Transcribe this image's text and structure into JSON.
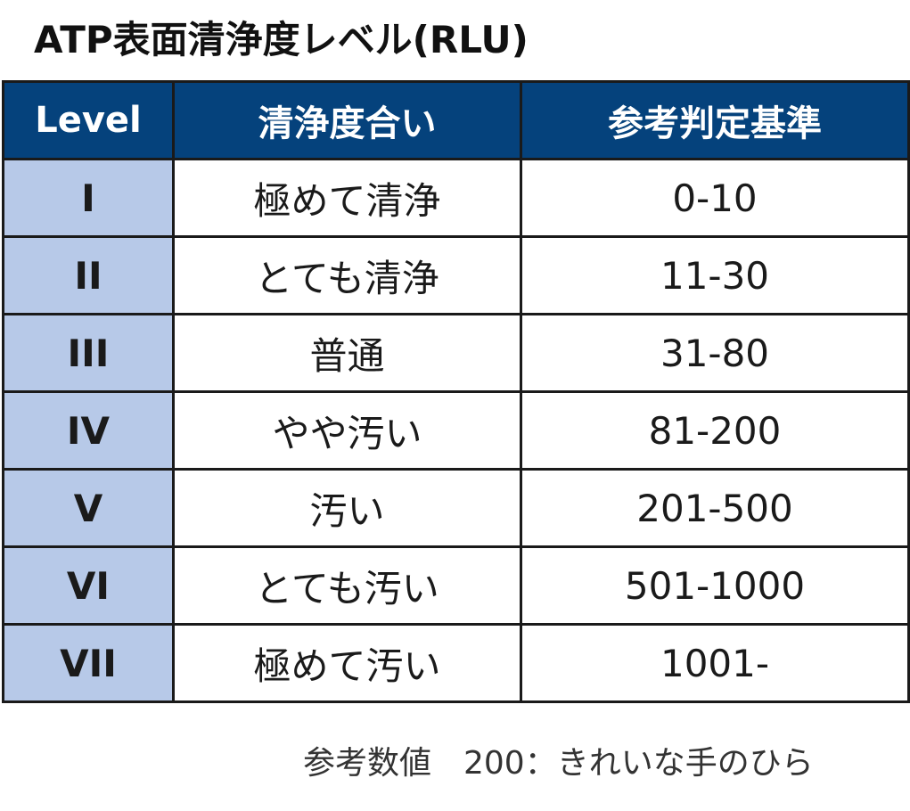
{
  "title": "ATP表面清浄度レベル(RLU)",
  "table": {
    "headers": [
      "Level",
      "清浄度合い",
      "参考判定基準"
    ],
    "rows": [
      {
        "level": "I",
        "cleanliness": "極めて清浄",
        "criteria": "0-10"
      },
      {
        "level": "II",
        "cleanliness": "とても清浄",
        "criteria": "11-30"
      },
      {
        "level": "III",
        "cleanliness": "普通",
        "criteria": "31-80"
      },
      {
        "level": "IV",
        "cleanliness": "やや汚い",
        "criteria": "81-200"
      },
      {
        "level": "V",
        "cleanliness": "汚い",
        "criteria": "201-500"
      },
      {
        "level": "VI",
        "cleanliness": "とても汚い",
        "criteria": "501-1000"
      },
      {
        "level": "VII",
        "cleanliness": "極めて汚い",
        "criteria": "1001-"
      }
    ]
  },
  "note": "参考数値　200：きれいな手のひら",
  "colors": {
    "header_bg": "#05427c",
    "level_bg": "#b7c9e8"
  }
}
